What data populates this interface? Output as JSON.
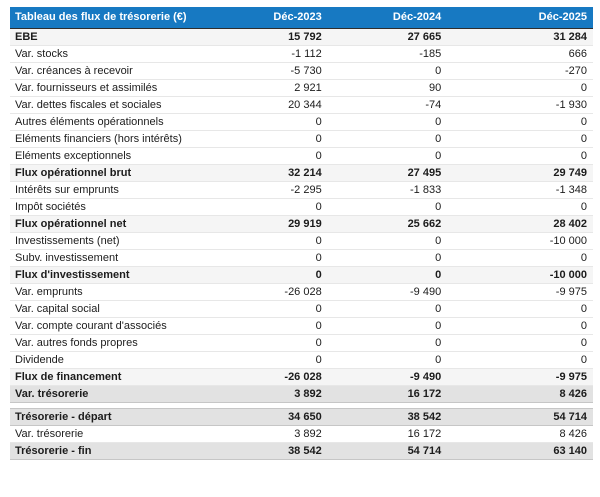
{
  "table": {
    "title": "Tableau des flux de trésorerie (€)",
    "columns": [
      "Déc-2023",
      "Déc-2024",
      "Déc-2025"
    ],
    "colors": {
      "header_bg": "#1779c2",
      "header_text": "#ffffff",
      "subtotal_row_bg": "#f5f5f5",
      "highlight_row_bg": "#e2e2e2"
    },
    "rows": [
      {
        "label": "EBE",
        "values": [
          "15 792",
          "27 665",
          "31 284"
        ],
        "style": "subtotal"
      },
      {
        "label": "Var. stocks",
        "values": [
          "-1 112",
          "-185",
          "666"
        ],
        "style": "plain"
      },
      {
        "label": "Var. créances à recevoir",
        "values": [
          "-5 730",
          "0",
          "-270"
        ],
        "style": "plain"
      },
      {
        "label": "Var. fournisseurs et assimilés",
        "values": [
          "2 921",
          "90",
          "0"
        ],
        "style": "plain"
      },
      {
        "label": "Var. dettes fiscales et sociales",
        "values": [
          "20 344",
          "-74",
          "-1 930"
        ],
        "style": "plain"
      },
      {
        "label": "Autres éléments opérationnels",
        "values": [
          "0",
          "0",
          "0"
        ],
        "style": "plain"
      },
      {
        "label": "Eléments financiers (hors intérêts)",
        "values": [
          "0",
          "0",
          "0"
        ],
        "style": "plain"
      },
      {
        "label": "Eléments exceptionnels",
        "values": [
          "0",
          "0",
          "0"
        ],
        "style": "plain"
      },
      {
        "label": "Flux opérationnel brut",
        "values": [
          "32 214",
          "27 495",
          "29 749"
        ],
        "style": "subtotal"
      },
      {
        "label": "Intérêts sur emprunts",
        "values": [
          "-2 295",
          "-1 833",
          "-1 348"
        ],
        "style": "plain"
      },
      {
        "label": "Impôt sociétés",
        "values": [
          "0",
          "0",
          "0"
        ],
        "style": "plain"
      },
      {
        "label": "Flux opérationnel net",
        "values": [
          "29 919",
          "25 662",
          "28 402"
        ],
        "style": "subtotal"
      },
      {
        "label": "Investissements (net)",
        "values": [
          "0",
          "0",
          "-10 000"
        ],
        "style": "plain"
      },
      {
        "label": "Subv. investissement",
        "values": [
          "0",
          "0",
          "0"
        ],
        "style": "plain"
      },
      {
        "label": "Flux d'investissement",
        "values": [
          "0",
          "0",
          "-10 000"
        ],
        "style": "subtotal"
      },
      {
        "label": "Var. emprunts",
        "values": [
          "-26 028",
          "-9 490",
          "-9 975"
        ],
        "style": "plain"
      },
      {
        "label": "Var. capital social",
        "values": [
          "0",
          "0",
          "0"
        ],
        "style": "plain"
      },
      {
        "label": "Var. compte courant d'associés",
        "values": [
          "0",
          "0",
          "0"
        ],
        "style": "plain"
      },
      {
        "label": "Var. autres fonds propres",
        "values": [
          "0",
          "0",
          "0"
        ],
        "style": "plain"
      },
      {
        "label": "Dividende",
        "values": [
          "0",
          "0",
          "0"
        ],
        "style": "plain"
      },
      {
        "label": "Flux de financement",
        "values": [
          "-26 028",
          "-9 490",
          "-9 975"
        ],
        "style": "subtotal"
      },
      {
        "label": "Var. trésorerie",
        "values": [
          "3 892",
          "16 172",
          "8 426"
        ],
        "style": "highlight"
      },
      {
        "style": "spacer"
      },
      {
        "label": "Trésorerie - départ",
        "values": [
          "34 650",
          "38 542",
          "54 714"
        ],
        "style": "highlight"
      },
      {
        "label": "Var. trésorerie",
        "values": [
          "3 892",
          "16 172",
          "8 426"
        ],
        "style": "plain"
      },
      {
        "label": "Trésorerie - fin",
        "values": [
          "38 542",
          "54 714",
          "63 140"
        ],
        "style": "highlight"
      }
    ]
  }
}
